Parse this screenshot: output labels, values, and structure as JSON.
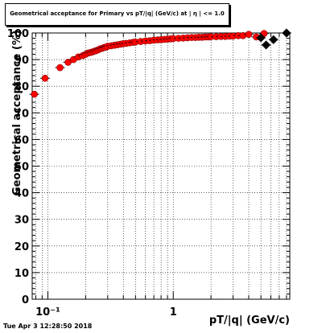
{
  "window": {
    "timestamp": "Tue Apr  3 12:28:50 2018"
  },
  "chart_data": {
    "type": "scatter",
    "title": "Geometrical acceptance for Primary vs pT/|q| (GeV/c) at | η | <= 1.0",
    "xlabel": "pT/|q| (GeV/c)",
    "ylabel": "Geometrical acceptance (%)",
    "xscale": "log",
    "xlim": [
      0.075,
      8.5
    ],
    "ylim": [
      0,
      100
    ],
    "grid": true,
    "y_ticks": [
      0,
      10,
      20,
      30,
      40,
      50,
      60,
      70,
      80,
      90,
      100
    ],
    "x_tick_labels": [
      "10⁻¹",
      "1"
    ],
    "series": [
      {
        "color": "#ff0000",
        "marker": "circle",
        "x": [
          0.078,
          0.095,
          0.125,
          0.145,
          0.16,
          0.175,
          0.19,
          0.2,
          0.21,
          0.22,
          0.23,
          0.24,
          0.25,
          0.26,
          0.27,
          0.28,
          0.29,
          0.3,
          0.32,
          0.34,
          0.36,
          0.38,
          0.4,
          0.42,
          0.45,
          0.48,
          0.5,
          0.55,
          0.6,
          0.65,
          0.7,
          0.75,
          0.8,
          0.85,
          0.9,
          0.95,
          1.0,
          1.1,
          1.2,
          1.3,
          1.4,
          1.5,
          1.6,
          1.7,
          1.8,
          1.9,
          2.0,
          2.2,
          2.4,
          2.6,
          2.8,
          3.0,
          3.3,
          3.6,
          4.0,
          4.6,
          5.3
        ],
        "y": [
          77,
          83,
          87,
          89,
          90,
          91,
          91.5,
          92,
          92.5,
          92.7,
          93,
          93.3,
          93.6,
          94,
          94.2,
          94.5,
          94.7,
          95,
          95.2,
          95.4,
          95.6,
          95.8,
          96,
          96.1,
          96.3,
          96.5,
          96.6,
          96.8,
          97,
          97.1,
          97.3,
          97.4,
          97.5,
          97.6,
          97.7,
          97.8,
          97.9,
          98,
          98.1,
          98.2,
          98.3,
          98.3,
          98.4,
          98.4,
          98.5,
          98.5,
          98.6,
          98.6,
          98.7,
          98.7,
          98.8,
          98.8,
          99,
          99,
          99.5,
          98.5,
          99.8
        ]
      },
      {
        "color": "#000000",
        "marker": "diamond",
        "x": [
          5.0,
          5.5,
          6.3,
          8.0
        ],
        "y": [
          98.2,
          95.5,
          97.5,
          100
        ]
      }
    ]
  }
}
